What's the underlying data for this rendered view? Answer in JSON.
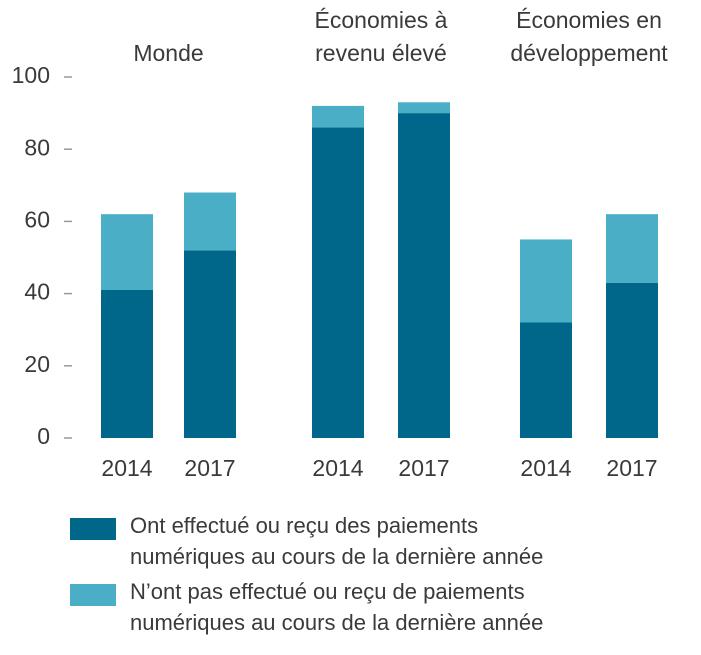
{
  "chart_data": {
    "type": "stacked_bar",
    "groups": [
      [
        "Monde"
      ],
      [
        "Économies à",
        "revenu élevé"
      ],
      [
        "Économies en",
        "développement"
      ]
    ],
    "categories": [
      "2014",
      "2017",
      "2014",
      "2017",
      "2014",
      "2017"
    ],
    "series": [
      {
        "name": "Ont effectué ou reçu des paiements numériques au cours de la dernière année",
        "color": "#01678a",
        "values": [
          41,
          52,
          86,
          90,
          32,
          43
        ]
      },
      {
        "name": "N’ont pas effectué ou reçu de paiements numériques au cours de la dernière année",
        "color": "#4aaec6",
        "values": [
          21,
          16,
          6,
          3,
          23,
          19
        ]
      }
    ],
    "ylim": [
      0,
      100
    ],
    "yticks": [
      0,
      20,
      40,
      60,
      80,
      100
    ]
  }
}
